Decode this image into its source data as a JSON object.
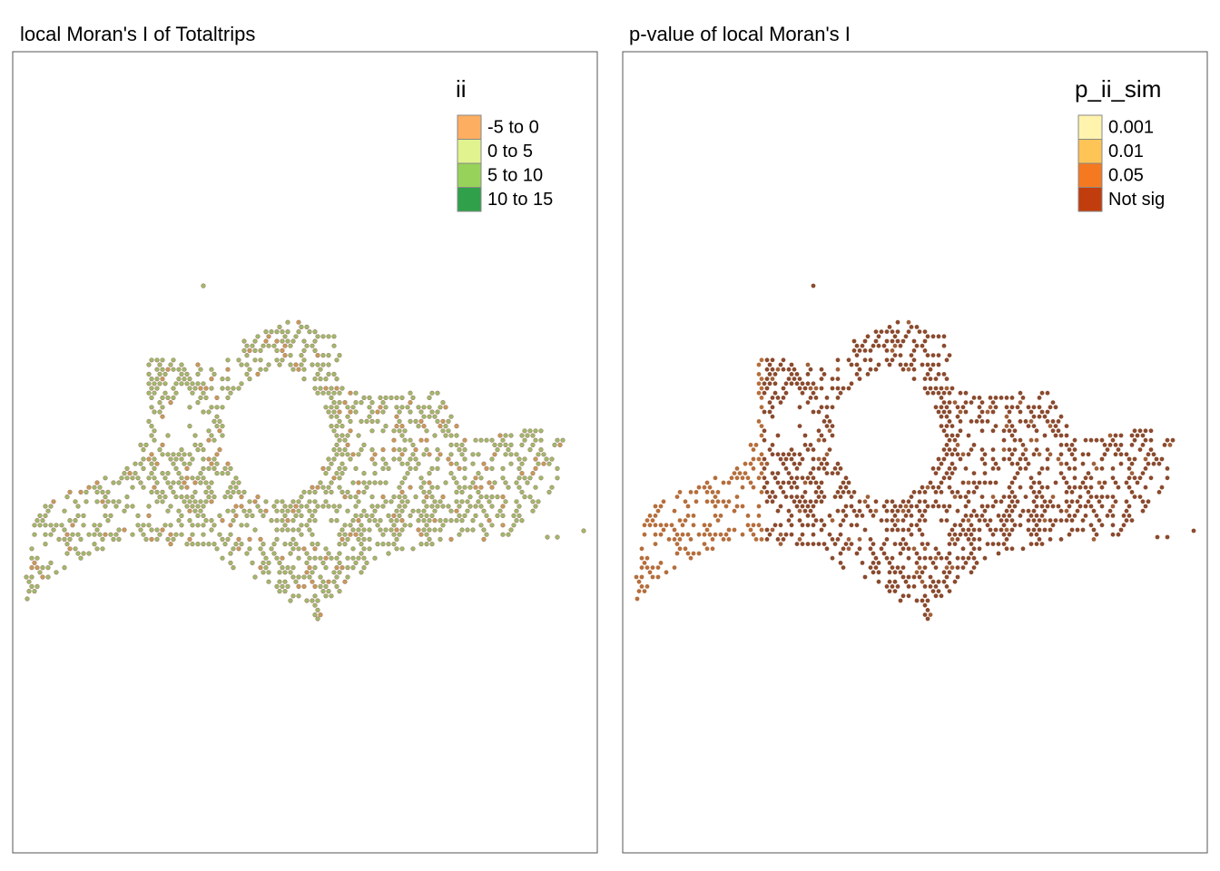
{
  "panels": [
    {
      "title": "local Moran's I of Totaltrips",
      "legend": {
        "title": "ii",
        "items": [
          {
            "label": "-5 to 0",
            "color": "#fdae61"
          },
          {
            "label": "0 to 5",
            "color": "#e0f38f"
          },
          {
            "label": "5 to 10",
            "color": "#97d25a"
          },
          {
            "label": "10 to 15",
            "color": "#30a04a"
          }
        ]
      }
    },
    {
      "title": "p-value of local Moran's I",
      "legend": {
        "title": "p_ii_sim",
        "items": [
          {
            "label": "0.001",
            "color": "#fff3ae"
          },
          {
            "label": "0.01",
            "color": "#fec456"
          },
          {
            "label": "0.05",
            "color": "#f47920"
          },
          {
            "label": "Not sig",
            "color": "#c13d0d"
          }
        ]
      }
    }
  ]
}
